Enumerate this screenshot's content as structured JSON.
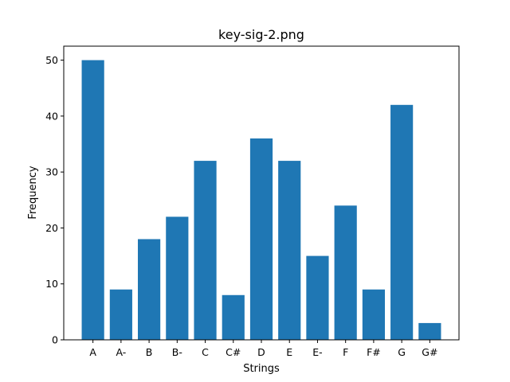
{
  "chart_data": {
    "type": "bar",
    "title": "key-sig-2.png",
    "xlabel": "Strings",
    "ylabel": "Frequency",
    "categories": [
      "A",
      "A-",
      "B",
      "B-",
      "C",
      "C#",
      "D",
      "E",
      "E-",
      "F",
      "F#",
      "G",
      "G#"
    ],
    "values": [
      50,
      9,
      18,
      22,
      32,
      8,
      36,
      32,
      15,
      24,
      9,
      42,
      3
    ],
    "ylim": [
      0,
      52.5
    ],
    "yticks": [
      0,
      10,
      20,
      30,
      40,
      50
    ],
    "bar_color": "#1f77b4",
    "grid": false
  }
}
